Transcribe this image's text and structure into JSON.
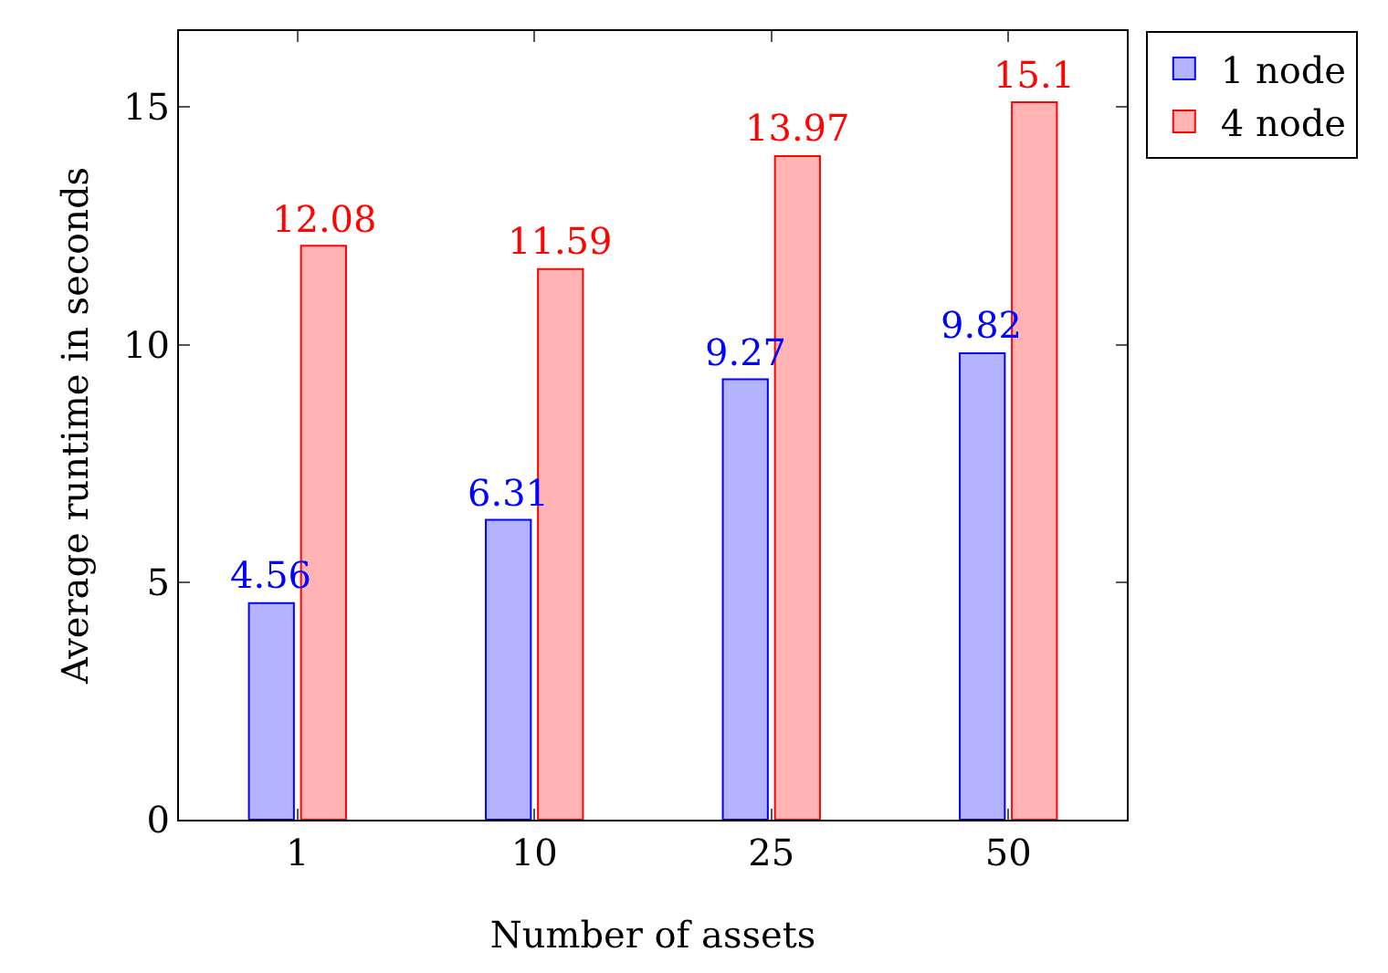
{
  "chart_data": {
    "type": "bar",
    "xlabel": "Number of assets",
    "ylabel": "Average runtime in seconds",
    "categories": [
      "1",
      "10",
      "25",
      "50"
    ],
    "series": [
      {
        "name": "1 node",
        "color": "#b3b3ff",
        "values": [
          4.56,
          6.31,
          9.27,
          9.82
        ]
      },
      {
        "name": "4 node",
        "color": "#ffb3b3",
        "values": [
          12.08,
          11.59,
          13.97,
          15.1
        ]
      }
    ],
    "ylim": [
      0,
      16.6
    ],
    "yticks": [
      0,
      5,
      10,
      15
    ],
    "grid": false,
    "legend": "top right",
    "data_labels": true
  }
}
